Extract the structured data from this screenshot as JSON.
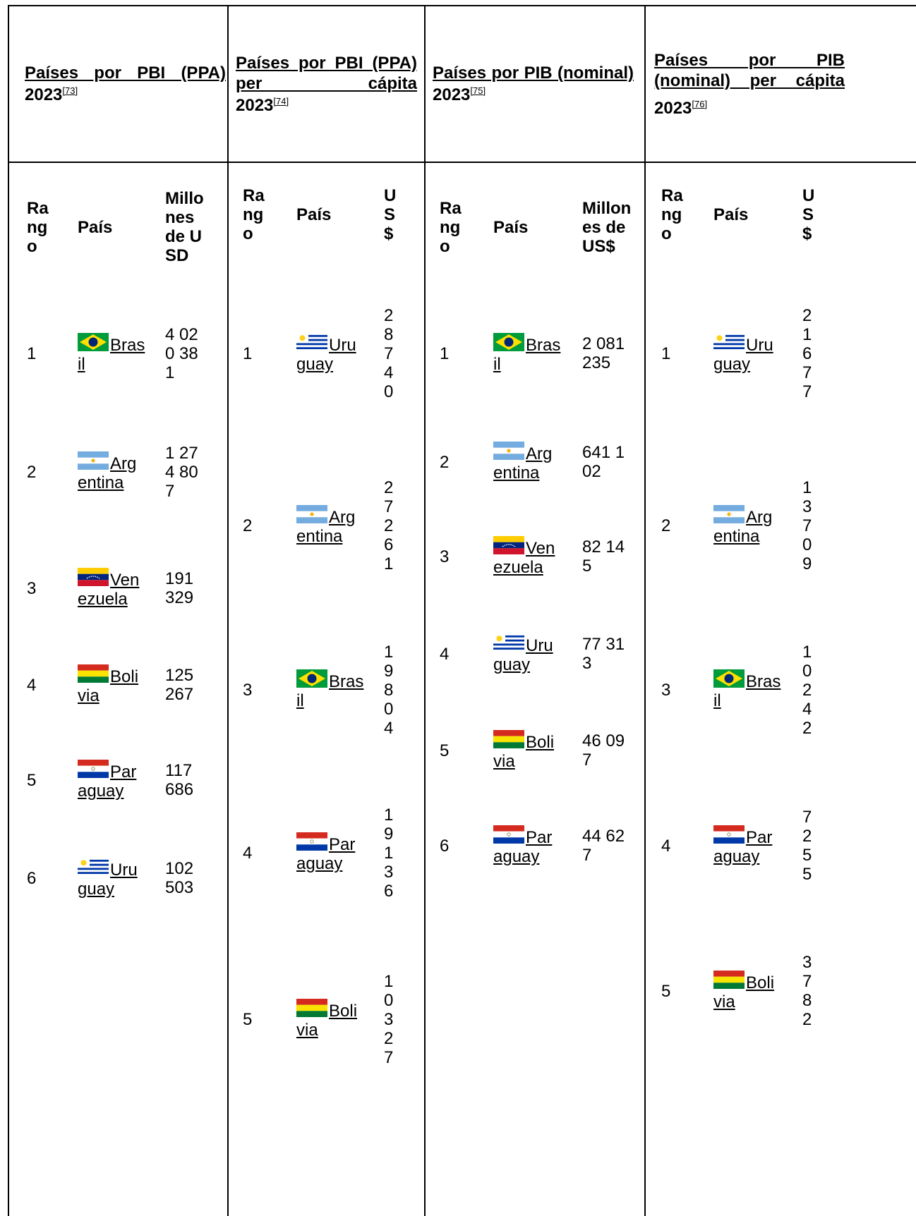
{
  "tables": [
    {
      "title": "Países por PBI (PPA)",
      "year": "2023",
      "ref": "[73]",
      "headers": {
        "rank": "Rango",
        "country": "País",
        "value": "Millones de USD"
      },
      "rows": [
        {
          "rank": "1",
          "country": "Brasil",
          "flag": "brazil-flag",
          "value": "4 020 381"
        },
        {
          "rank": "2",
          "country": "Argentina",
          "flag": "argentina-flag",
          "value": "1 274 807"
        },
        {
          "rank": "3",
          "country": "Venezuela",
          "flag": "venezuela-flag",
          "value": "191 329"
        },
        {
          "rank": "4",
          "country": "Bolivia",
          "flag": "bolivia-flag",
          "value": "125 267"
        },
        {
          "rank": "5",
          "country": "Paraguay",
          "flag": "paraguay-flag",
          "value": "117 686"
        },
        {
          "rank": "6",
          "country": "Uruguay",
          "flag": "uruguay-flag",
          "value": "102 503"
        }
      ]
    },
    {
      "title": "Países por PBI (PPA) per cápita",
      "year": "2023",
      "ref": "[74]",
      "headers": {
        "rank": "Rango",
        "country": "País",
        "value": "US$"
      },
      "rows": [
        {
          "rank": "1",
          "country": "Uruguay",
          "flag": "uruguay-flag",
          "value": "28740"
        },
        {
          "rank": "2",
          "country": "Argentina",
          "flag": "argentina-flag",
          "value": "27261"
        },
        {
          "rank": "3",
          "country": "Brasil",
          "flag": "brazil-flag",
          "value": "19804"
        },
        {
          "rank": "4",
          "country": "Paraguay",
          "flag": "paraguay-flag",
          "value": "19136"
        },
        {
          "rank": "5",
          "country": "Bolivia",
          "flag": "bolivia-flag",
          "value": "10327"
        }
      ]
    },
    {
      "title": "Países por PIB (nominal)",
      "year": "2023",
      "ref": "[75]",
      "headers": {
        "rank": "Rango",
        "country": "País",
        "value": "Millones de US$"
      },
      "rows": [
        {
          "rank": "1",
          "country": "Brasil",
          "flag": "brazil-flag",
          "value": "2 081 235"
        },
        {
          "rank": "2",
          "country": "Argentina",
          "flag": "argentina-flag",
          "value": "641 102"
        },
        {
          "rank": "3",
          "country": "Venezuela",
          "flag": "venezuela-flag",
          "value": "82 145"
        },
        {
          "rank": "4",
          "country": "Uruguay",
          "flag": "uruguay-flag",
          "value": "77 313"
        },
        {
          "rank": "5",
          "country": "Bolivia",
          "flag": "bolivia-flag",
          "value": "46 097"
        },
        {
          "rank": "6",
          "country": "Paraguay",
          "flag": "paraguay-flag",
          "value": "44 627"
        }
      ]
    },
    {
      "title": "Países por PIB (nominal) per cápita",
      "year": "2023",
      "ref": "[76]",
      "headers": {
        "rank": "Rango",
        "country": "País",
        "value": "US$"
      },
      "rows": [
        {
          "rank": "1",
          "country": "Uruguay",
          "flag": "uruguay-flag",
          "value": "21677"
        },
        {
          "rank": "2",
          "country": "Argentina",
          "flag": "argentina-flag",
          "value": "13709"
        },
        {
          "rank": "3",
          "country": "Brasil",
          "flag": "brazil-flag",
          "value": "10242"
        },
        {
          "rank": "4",
          "country": "Paraguay",
          "flag": "paraguay-flag",
          "value": "7255"
        },
        {
          "rank": "5",
          "country": "Bolivia",
          "flag": "bolivia-flag",
          "value": "3782"
        }
      ]
    }
  ],
  "flag_colors": {
    "brazil": {
      "green": "#009b3a",
      "yellow": "#fedf00",
      "blue": "#002776"
    },
    "argentina": {
      "light_blue": "#74acdf",
      "sun": "#f6b40e"
    },
    "venezuela": {
      "yellow": "#ffcc00",
      "blue": "#00247d",
      "red": "#cf142b"
    },
    "bolivia": {
      "red": "#d52b1e",
      "yellow": "#f9e300",
      "green": "#007934"
    },
    "paraguay": {
      "red": "#d52b1e",
      "blue": "#0038a8"
    },
    "uruguay": {
      "blue": "#0038a8",
      "sun": "#fcd116"
    }
  }
}
